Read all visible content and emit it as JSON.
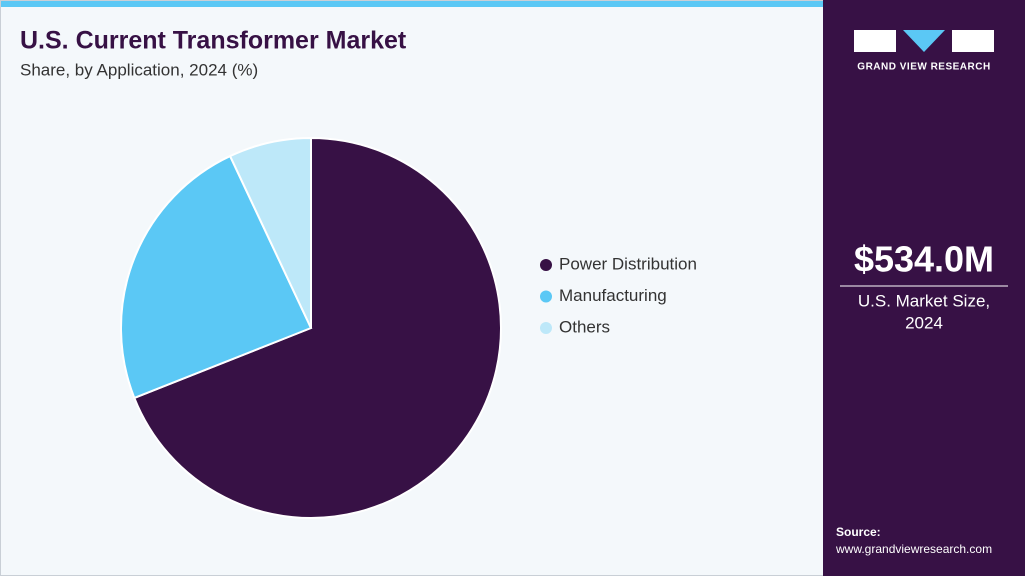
{
  "chart_data": {
    "type": "pie",
    "title": "U.S. Current Transformer Market",
    "subtitle": "Share, by Application, 2024 (%)",
    "categories": [
      "Power Distribution",
      "Manufacturing",
      "Others"
    ],
    "values": [
      69,
      24,
      7
    ],
    "colors": [
      "#371145",
      "#5bc8f5",
      "#bde8f9"
    ],
    "legend": "right"
  },
  "side_panel": {
    "brand": "GRAND VIEW RESEARCH",
    "market_size": "$534.0M",
    "market_size_label_1": "U.S. Market Size,",
    "market_size_label_2": "2024",
    "source_label": "Source:",
    "source_url": "www.grandviewresearch.com"
  }
}
